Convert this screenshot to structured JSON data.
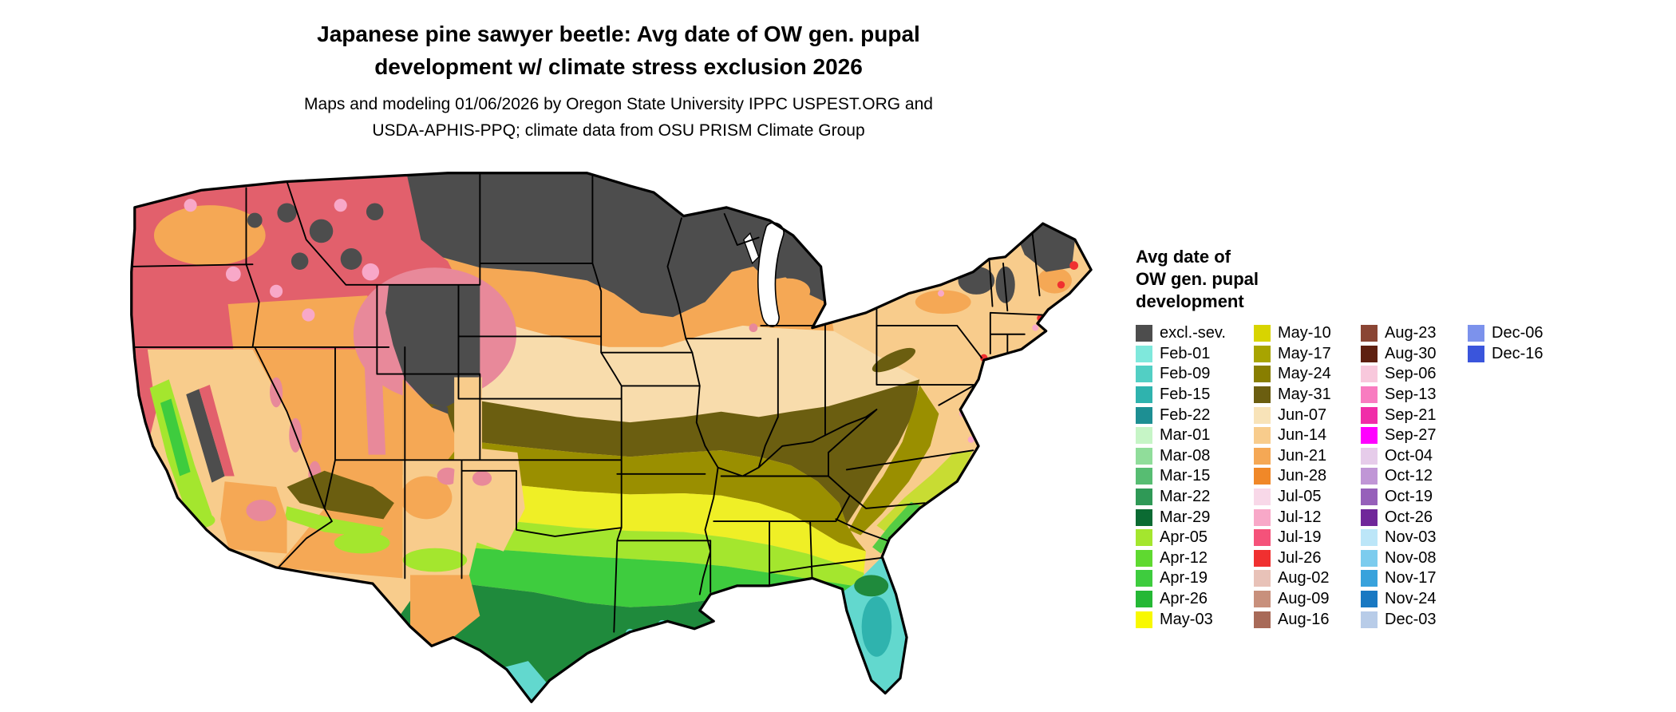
{
  "title": {
    "line1": "Japanese pine sawyer beetle: Avg date of OW gen. pupal",
    "line2": "development w/ climate stress exclusion 2026"
  },
  "subtitle": {
    "line1": "Maps and modeling 01/06/2026 by Oregon State University IPPC USPEST.ORG and",
    "line2": "USDA-APHIS-PPQ; climate data from OSU PRISM Climate Group"
  },
  "legend": {
    "title_lines": [
      "Avg date of",
      "OW gen. pupal",
      "development"
    ],
    "columns": [
      [
        {
          "label": "excl.-sev.",
          "color": "#4D4D4D"
        },
        {
          "label": "Feb-01",
          "color": "#7FE8DC"
        },
        {
          "label": "Feb-09",
          "color": "#52CFC4"
        },
        {
          "label": "Feb-15",
          "color": "#2FB3AE"
        },
        {
          "label": "Feb-22",
          "color": "#1D8F93"
        },
        {
          "label": "Mar-01",
          "color": "#C6F5C6"
        },
        {
          "label": "Mar-08",
          "color": "#90DD9A"
        },
        {
          "label": "Mar-15",
          "color": "#57BD72"
        },
        {
          "label": "Mar-22",
          "color": "#2F9956"
        },
        {
          "label": "Mar-29",
          "color": "#0B6B33"
        },
        {
          "label": "Apr-05",
          "color": "#A4E62E"
        },
        {
          "label": "Apr-12",
          "color": "#5FD930"
        },
        {
          "label": "Apr-19",
          "color": "#3ECC3E"
        },
        {
          "label": "Apr-26",
          "color": "#25B835"
        },
        {
          "label": "May-03",
          "color": "#F8F800"
        }
      ],
      [
        {
          "label": "May-10",
          "color": "#D8D400"
        },
        {
          "label": "May-17",
          "color": "#A8A400"
        },
        {
          "label": "May-24",
          "color": "#887E00"
        },
        {
          "label": "May-31",
          "color": "#6B5E10"
        },
        {
          "label": "Jun-07",
          "color": "#F8E3B8"
        },
        {
          "label": "Jun-14",
          "color": "#F8CC8C"
        },
        {
          "label": "Jun-21",
          "color": "#F5A855"
        },
        {
          "label": "Jun-28",
          "color": "#F08828"
        },
        {
          "label": "Jul-05",
          "color": "#F8D8E8"
        },
        {
          "label": "Jul-12",
          "color": "#F8A8C8"
        },
        {
          "label": "Jul-19",
          "color": "#F5527A"
        },
        {
          "label": "Jul-26",
          "color": "#F03030"
        },
        {
          "label": "Aug-02",
          "color": "#E8C2B8"
        },
        {
          "label": "Aug-09",
          "color": "#C8907C"
        },
        {
          "label": "Aug-16",
          "color": "#A86A58"
        }
      ],
      [
        {
          "label": "Aug-23",
          "color": "#8A4534"
        },
        {
          "label": "Aug-30",
          "color": "#5E2010"
        },
        {
          "label": "Sep-06",
          "color": "#F8C8DC"
        },
        {
          "label": "Sep-13",
          "color": "#F87CC0"
        },
        {
          "label": "Sep-21",
          "color": "#F02DA8"
        },
        {
          "label": "Sep-27",
          "color": "#FF00FF"
        },
        {
          "label": "Oct-04",
          "color": "#E6CCEA"
        },
        {
          "label": "Oct-12",
          "color": "#C096D6"
        },
        {
          "label": "Oct-19",
          "color": "#9660BA"
        },
        {
          "label": "Oct-26",
          "color": "#70279A"
        },
        {
          "label": "Nov-03",
          "color": "#BCE6F8"
        },
        {
          "label": "Nov-08",
          "color": "#7CCCEE"
        },
        {
          "label": "Nov-17",
          "color": "#38A2DC"
        },
        {
          "label": "Nov-24",
          "color": "#1878C2"
        },
        {
          "label": "Dec-03",
          "color": "#B8CCE8"
        }
      ],
      [
        {
          "label": "Dec-06",
          "color": "#7C92EC"
        },
        {
          "label": "Dec-16",
          "color": "#3A55DC"
        }
      ]
    ]
  },
  "map_palette": {
    "gray": "#4D4D4D",
    "red": "#E2606C",
    "bright_red": "#F03030",
    "pink": "#E8899A",
    "light_pink": "#F8A8C8",
    "orange": "#F5A855",
    "dark_orange": "#F08828",
    "tan": "#F8CC8C",
    "cream_tan": "#F8DCAC",
    "light_tan": "#F8E3B8",
    "dark_olive": "#6B5E10",
    "olive": "#9A8F00",
    "yellow": "#EFEF26",
    "yellow_green": "#A4E62E",
    "green": "#3ECC3E",
    "bright_green": "#55CC44",
    "dark_green": "#1F8A3C",
    "turquoise": "#62D8CE",
    "teal": "#2FB3AE",
    "coastal_yg": "#C8DC33",
    "water": "#FFFFFF",
    "border": "#000000"
  }
}
